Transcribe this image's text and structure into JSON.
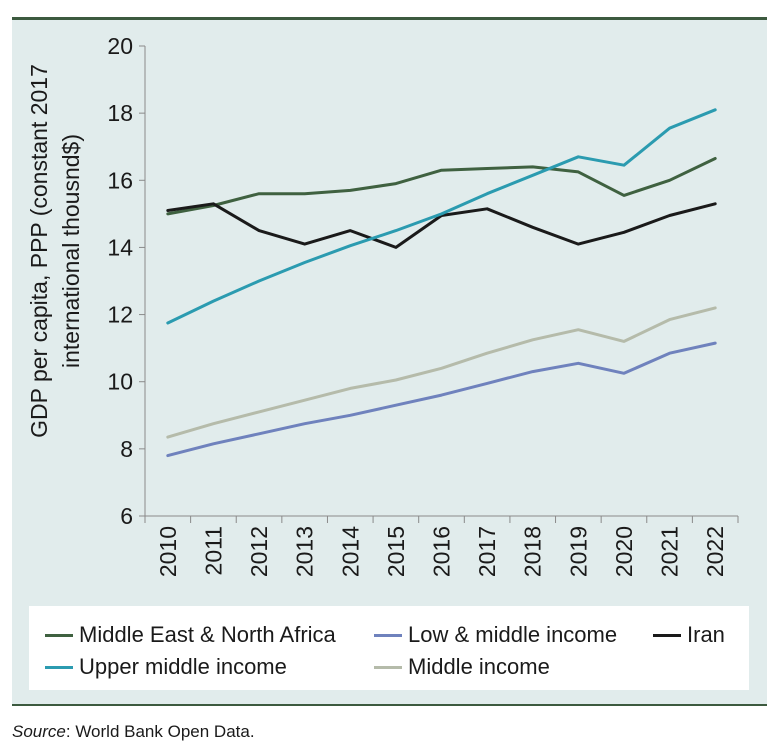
{
  "chart_data": {
    "type": "line",
    "title": "",
    "xlabel": "",
    "ylabel": "GDP per capita, PPP (constant 2017 international thousnd$)",
    "ylabel_lines": [
      "GDP per capita, PPP (constant 2017",
      "international thousnd$)"
    ],
    "ylim": [
      6,
      20
    ],
    "yticks": [
      6,
      8,
      10,
      12,
      14,
      16,
      18,
      20
    ],
    "categories": [
      "2010",
      "2011",
      "2012",
      "2013",
      "2014",
      "2015",
      "2016",
      "2017",
      "2018",
      "2019",
      "2020",
      "2021",
      "2022"
    ],
    "series": [
      {
        "name": "Middle East & North Africa",
        "color": "#3f6140",
        "values": [
          15.0,
          15.25,
          15.6,
          15.6,
          15.7,
          15.9,
          16.3,
          16.35,
          16.4,
          16.25,
          15.55,
          16.0,
          16.65
        ]
      },
      {
        "name": "Low & middle income",
        "color": "#6f82bd",
        "values": [
          7.8,
          8.15,
          8.45,
          8.75,
          9.0,
          9.3,
          9.6,
          9.95,
          10.3,
          10.55,
          10.25,
          10.85,
          11.15
        ]
      },
      {
        "name": "Iran",
        "color": "#1a1a1a",
        "values": [
          15.1,
          15.3,
          14.5,
          14.1,
          14.5,
          14.0,
          14.95,
          15.15,
          14.6,
          14.1,
          14.45,
          14.95,
          15.3
        ]
      },
      {
        "name": "Upper middle income",
        "color": "#2b9bb0",
        "values": [
          11.75,
          12.4,
          13.0,
          13.55,
          14.05,
          14.5,
          15.0,
          15.6,
          16.15,
          16.7,
          16.45,
          17.55,
          18.1
        ]
      },
      {
        "name": "Middle income",
        "color": "#b5bbaa",
        "values": [
          8.35,
          8.75,
          9.1,
          9.45,
          9.8,
          10.05,
          10.4,
          10.85,
          11.25,
          11.55,
          11.2,
          11.85,
          12.2
        ]
      }
    ],
    "legend": "bottom",
    "grid": false
  },
  "legend_items": [
    {
      "label": "Middle East & North Africa",
      "color": "#3f6140"
    },
    {
      "label": "Low & middle income",
      "color": "#6f82bd"
    },
    {
      "label": "Iran",
      "color": "#1a1a1a"
    },
    {
      "label": "Upper middle income",
      "color": "#2b9bb0"
    },
    {
      "label": "Middle income",
      "color": "#b5bbaa"
    }
  ],
  "source": {
    "label": "Source",
    "text": ": World Bank Open Data."
  }
}
